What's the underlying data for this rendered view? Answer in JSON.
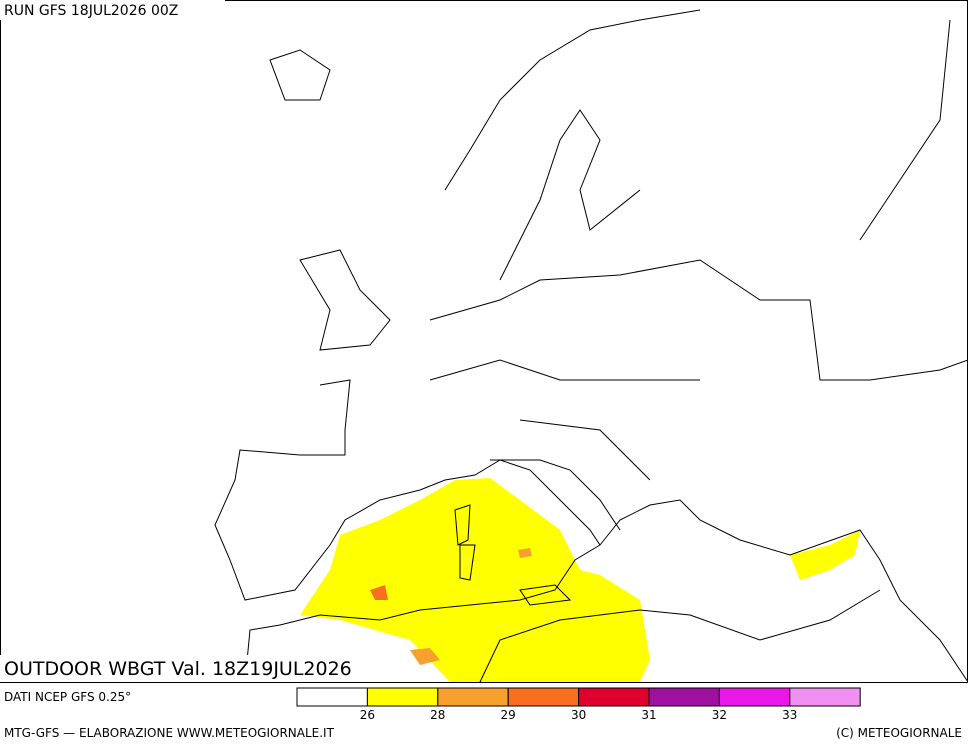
{
  "header": {
    "run": "RUN GFS 18JUL2026 00Z"
  },
  "map": {
    "title": "OUTDOOR WBGT Val. 18Z19JUL2026"
  },
  "legend": {
    "colors": [
      "#ffffff",
      "#ffff00",
      "#f7a030",
      "#f77020",
      "#e00030",
      "#a010a0",
      "#e818e8",
      "#f090f0"
    ],
    "ticks": [
      26,
      28,
      29,
      30,
      31,
      32,
      33
    ]
  },
  "footer": {
    "source": "DATI NCEP GFS 0.25°",
    "credits": "MTG-GFS — ELABORAZIONE WWW.METEOGIORNALE.IT",
    "copyright": "(C) METEOGIORNALE"
  }
}
